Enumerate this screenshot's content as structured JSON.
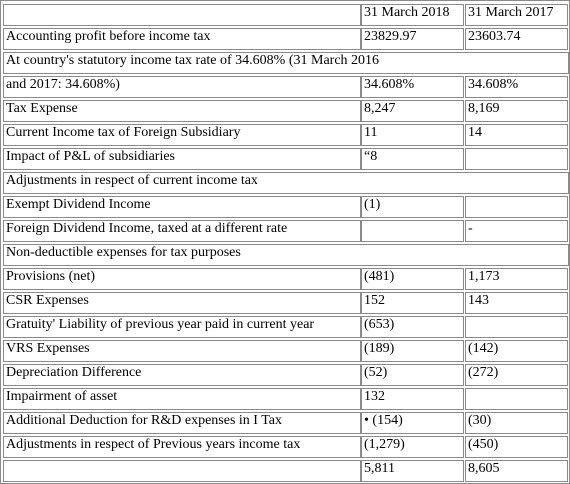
{
  "table": {
    "headers": [
      "31 March 2018",
      "31 March 2017"
    ],
    "rows": [
      {
        "label": "Accounting profit before income tax",
        "y2018": "23829.97",
        "y2017": "23603.74"
      },
      {
        "label": "At country's statutory income tax rate of 34.608% (31 March 2016",
        "y2018": "",
        "y2017": "",
        "span": true
      },
      {
        "label": "and 2017: 34.608%)",
        "y2018": "34.608%",
        "y2017": "34.608%"
      },
      {
        "label": "Tax Expense",
        "y2018": "8,247",
        "y2017": "8,169"
      },
      {
        "label": "Current Income tax of Foreign Subsidiary",
        "y2018": "11",
        "y2017": "14"
      },
      {
        "label": "Impact of P&L of subsidiaries",
        "y2018": "“8",
        "y2017": ""
      },
      {
        "label": "Adjustments in respect of current income tax",
        "y2018": "",
        "y2017": "",
        "span": true
      },
      {
        "label": "Exempt Dividend Income",
        "y2018": "(1)",
        "y2017": ""
      },
      {
        "label": "Foreign Dividend Income, taxed at a different rate",
        "y2018": "",
        "y2017": "-"
      },
      {
        "label": "Non-deductible expenses for tax purposes",
        "y2018": "",
        "y2017": "",
        "span": true
      },
      {
        "label": "Provisions (net)",
        "y2018": "(481)",
        "y2017": "1,173"
      },
      {
        "label": "CSR Expenses",
        "y2018": "152",
        "y2017": "143"
      },
      {
        "label": "Gratuity' Liability of previous year paid in current year",
        "y2018": "(653)",
        "y2017": ""
      },
      {
        "label": "VRS Expenses",
        "y2018": "(189)",
        "y2017": "(142)"
      },
      {
        "label": "Depreciation Difference",
        "y2018": "(52)",
        "y2017": "(272)"
      },
      {
        "label": "Impairment of asset",
        "y2018": "132",
        "y2017": ""
      },
      {
        "label": "Additional Deduction for R&D expenses in I Tax",
        "y2018": "• (154)",
        "y2017": "(30)"
      },
      {
        "label": "Adjustments in respect of Previous years income tax",
        "y2018": "(1,279)",
        "y2017": "(450)"
      },
      {
        "label": "",
        "y2018": "5,811",
        "y2017": "8,605"
      }
    ]
  }
}
